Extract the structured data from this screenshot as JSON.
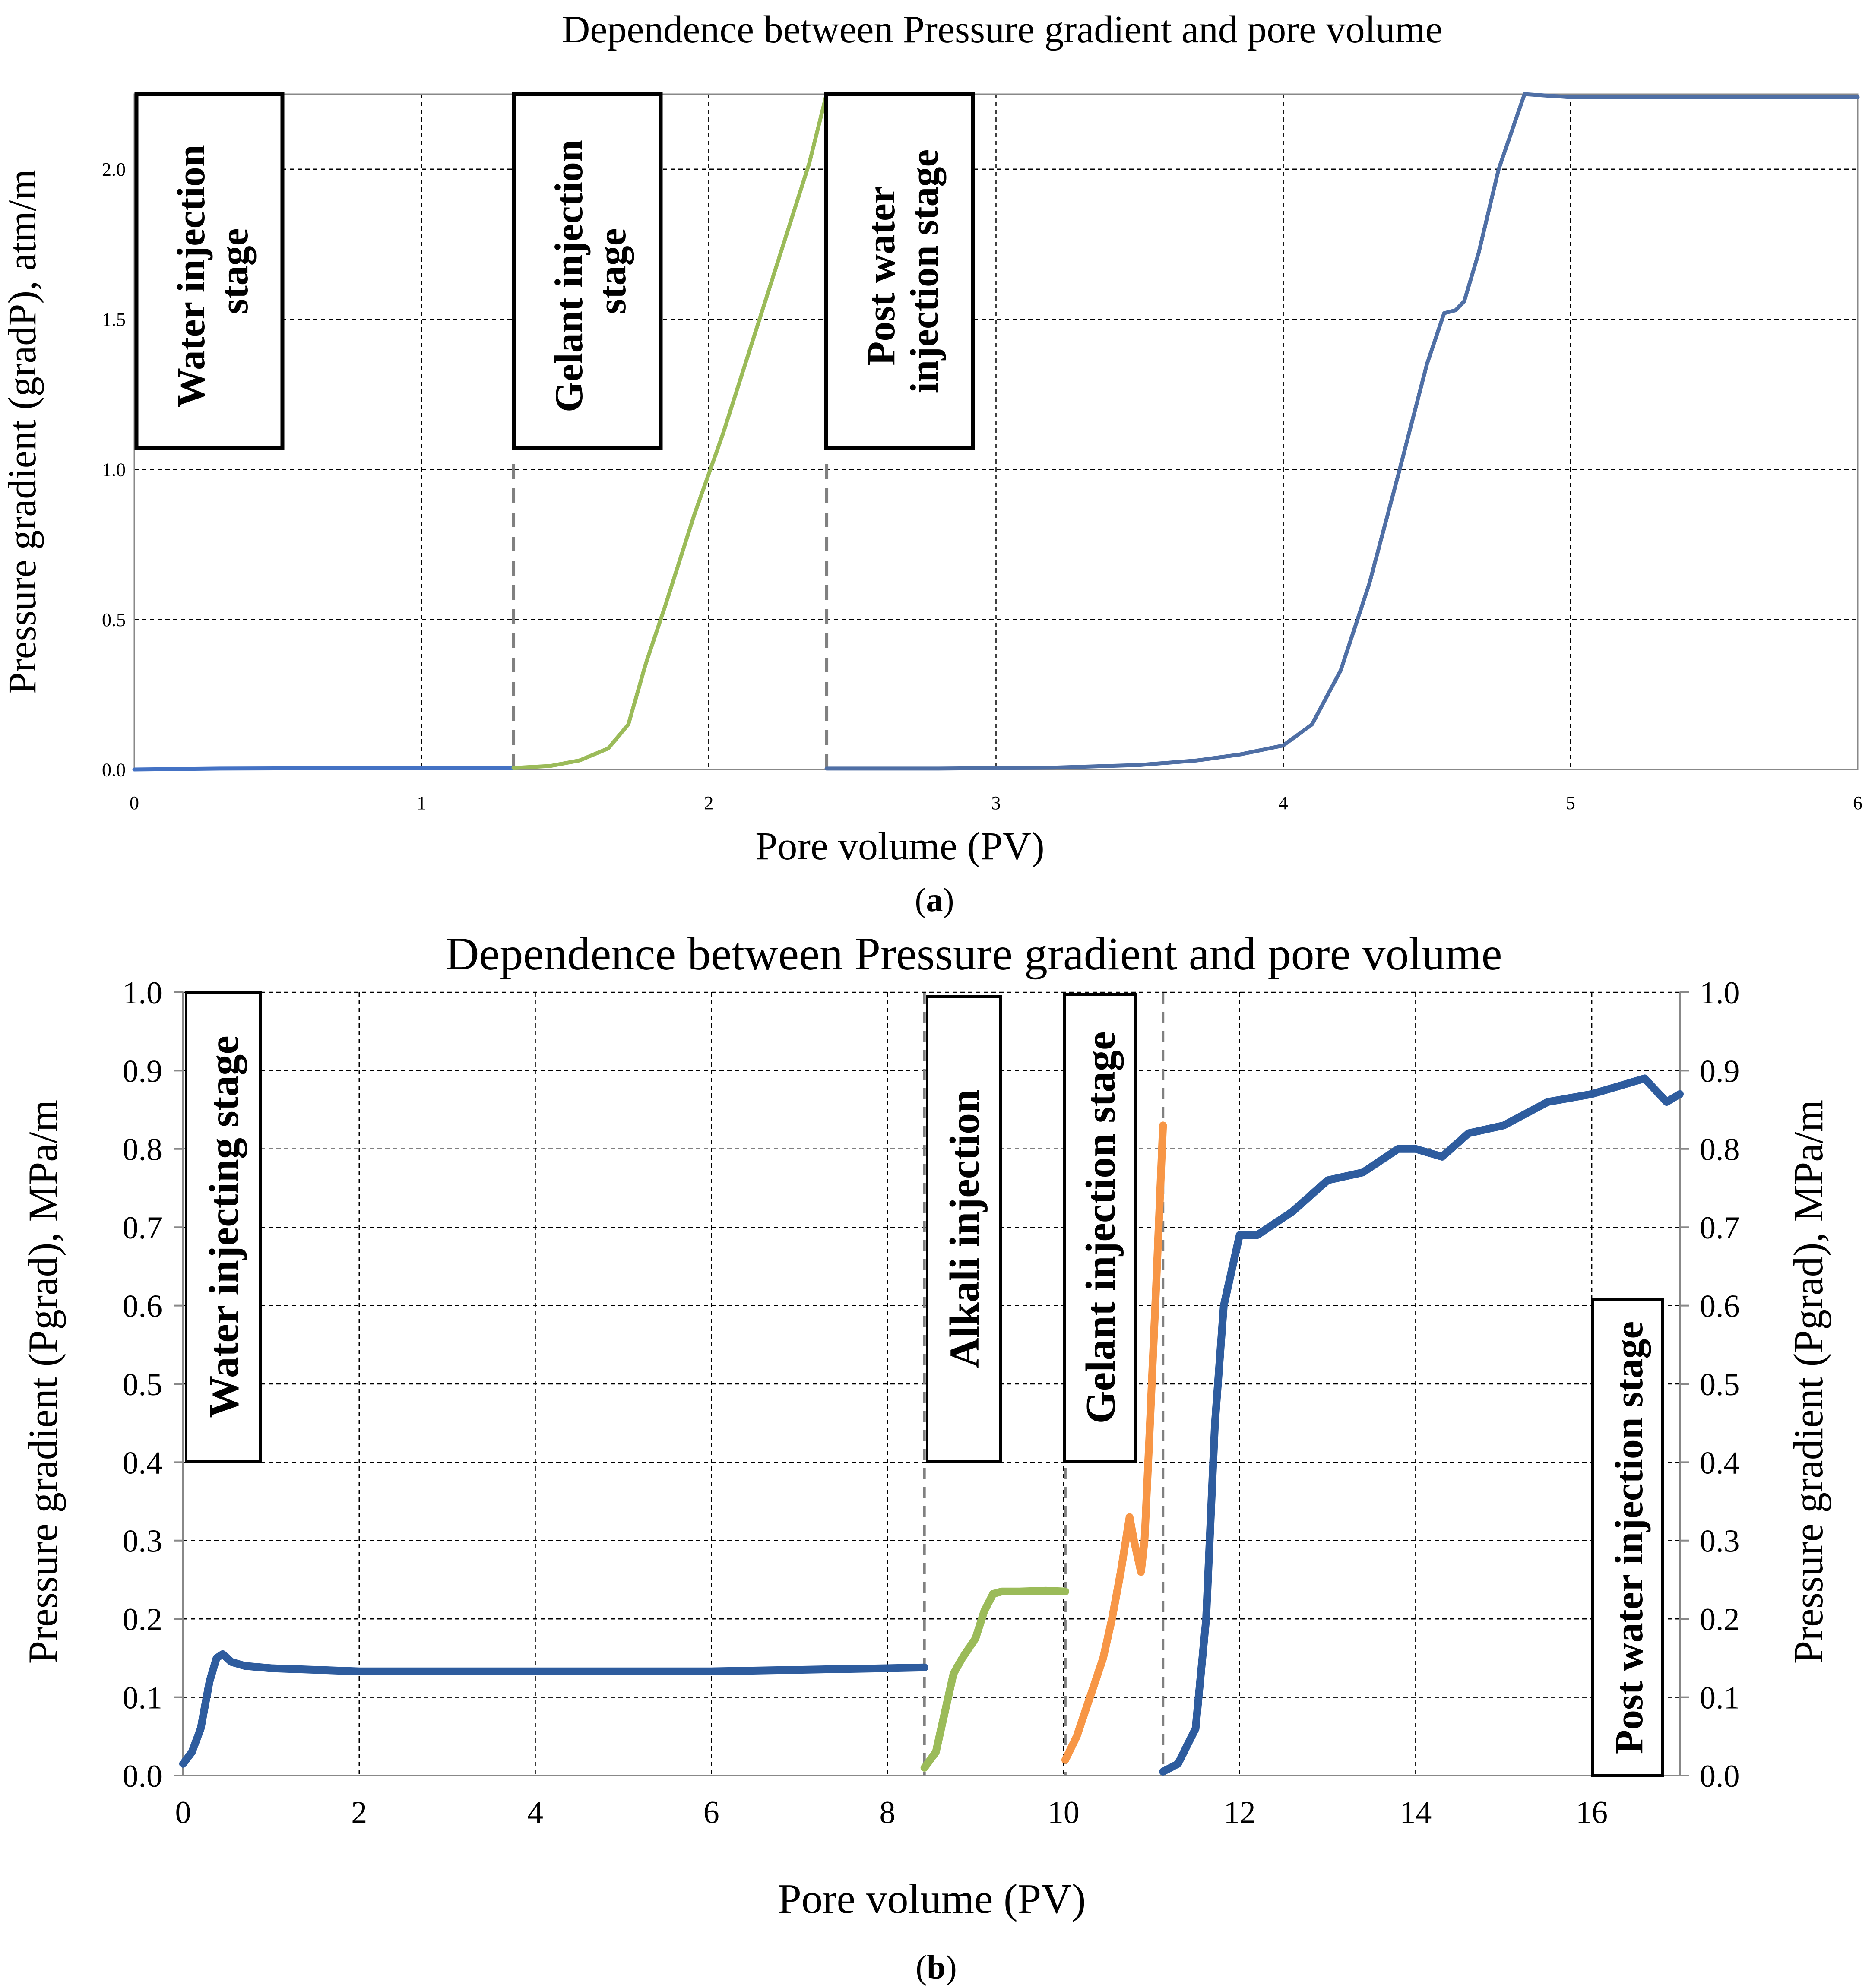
{
  "chart_data": [
    {
      "type": "line",
      "panel_label": "(a)",
      "title": "Dependence between Pressure gradient and pore volume",
      "xlabel": "Pore volume (PV)",
      "ylabel": "Pressure gradient (gradP), atm/m",
      "xlim": [
        0,
        6
      ],
      "ylim": [
        0,
        2.25
      ],
      "xticks": [
        "0",
        "1",
        "2",
        "3",
        "4",
        "5",
        "6"
      ],
      "yticks": [
        "0.0",
        "0.5",
        "1.0",
        "1.5",
        "2.0"
      ],
      "grid": true,
      "stage_dividers": [
        1.32,
        2.41
      ],
      "annotations": [
        {
          "lines": [
            "Water injection",
            "stage"
          ],
          "x_range": [
            0,
            0.52
          ]
        },
        {
          "lines": [
            "Gelant injection",
            "stage"
          ],
          "x_range": [
            1.32,
            1.84
          ]
        },
        {
          "lines": [
            "Post water",
            "injection stage"
          ],
          "x_range": [
            2.41,
            2.93
          ]
        }
      ],
      "series": [
        {
          "name": "Water injection stage",
          "color": "#4472c4",
          "x": [
            0,
            0.3,
            0.6,
            1.0,
            1.32
          ],
          "y": [
            0,
            0.003,
            0.004,
            0.005,
            0.005
          ]
        },
        {
          "name": "Gelant injection stage",
          "color": "#9bbb59",
          "x": [
            1.32,
            1.45,
            1.55,
            1.65,
            1.72,
            1.78,
            1.85,
            1.95,
            2.05,
            2.15,
            2.25,
            2.35,
            2.41
          ],
          "y": [
            0.005,
            0.012,
            0.03,
            0.07,
            0.15,
            0.35,
            0.55,
            0.85,
            1.12,
            1.42,
            1.72,
            2.02,
            2.25
          ]
        },
        {
          "name": "Post water injection stage",
          "color": "#4f6fa5",
          "x": [
            2.41,
            2.8,
            3.2,
            3.5,
            3.7,
            3.85,
            4.0,
            4.1,
            4.2,
            4.3,
            4.4,
            4.5,
            4.56,
            4.6,
            4.63,
            4.68,
            4.75,
            4.84,
            5.0,
            5.5,
            6.0
          ],
          "y": [
            0.003,
            0.003,
            0.006,
            0.015,
            0.03,
            0.05,
            0.08,
            0.15,
            0.33,
            0.62,
            0.98,
            1.35,
            1.52,
            1.53,
            1.56,
            1.72,
            2.0,
            2.25,
            2.24,
            2.24,
            2.24
          ]
        }
      ]
    },
    {
      "type": "line",
      "panel_label": "(b)",
      "title": "Dependence between Pressure gradient and pore volume",
      "xlabel": "Pore volume (PV)",
      "ylabel": "Pressure gradient (Pgrad), MPa/m",
      "ylabel_right": "Pressure gradient (Pgrad), MPa/m",
      "xlim": [
        0,
        17
      ],
      "ylim": [
        0,
        1.0
      ],
      "xticks": [
        "0",
        "2",
        "4",
        "6",
        "8",
        "10",
        "12",
        "14",
        "16"
      ],
      "yticks": [
        "0.0",
        "0.1",
        "0.2",
        "0.3",
        "0.4",
        "0.5",
        "0.6",
        "0.7",
        "0.8",
        "0.9",
        "1.0"
      ],
      "grid": true,
      "stage_dividers": [
        8.42,
        10.02,
        11.13
      ],
      "annotations": [
        {
          "text": "Water injecting stage",
          "x_range": [
            0.05,
            0.9
          ],
          "y_range": [
            0.4,
            1.0
          ]
        },
        {
          "text": "Alkali injection",
          "x_range": [
            8.4,
            9.27
          ],
          "y_range": [
            0.4,
            1.0
          ]
        },
        {
          "text": "Gelant injection stage",
          "x_range": [
            10.0,
            10.82
          ],
          "y_range": [
            0.4,
            1.0
          ]
        },
        {
          "text": "Post water injection stage",
          "x_range": [
            16.0,
            16.82
          ],
          "y_range": [
            0.0,
            0.6
          ]
        }
      ],
      "series": [
        {
          "name": "Water injecting stage",
          "color": "#2e5c9e",
          "x": [
            0,
            0.1,
            0.2,
            0.3,
            0.38,
            0.45,
            0.55,
            0.7,
            1.0,
            1.5,
            2.0,
            3.0,
            4.0,
            5.0,
            6.0,
            7.0,
            8.0,
            8.42
          ],
          "y": [
            0.015,
            0.03,
            0.06,
            0.12,
            0.15,
            0.155,
            0.145,
            0.14,
            0.137,
            0.135,
            0.133,
            0.133,
            0.133,
            0.133,
            0.133,
            0.135,
            0.137,
            0.138
          ]
        },
        {
          "name": "Alkali injection",
          "color": "#9bbb59",
          "x": [
            8.42,
            8.55,
            8.65,
            8.75,
            8.85,
            9.0,
            9.1,
            9.2,
            9.3,
            9.5,
            9.8,
            10.02
          ],
          "y": [
            0.01,
            0.03,
            0.08,
            0.13,
            0.15,
            0.175,
            0.21,
            0.232,
            0.235,
            0.235,
            0.236,
            0.235
          ]
        },
        {
          "name": "Gelant injection stage",
          "color": "#f79646",
          "x": [
            10.02,
            10.15,
            10.3,
            10.45,
            10.55,
            10.65,
            10.75,
            10.8,
            10.88,
            10.92,
            10.97,
            11.05,
            11.13
          ],
          "y": [
            0.02,
            0.05,
            0.1,
            0.15,
            0.2,
            0.26,
            0.33,
            0.3,
            0.26,
            0.3,
            0.42,
            0.62,
            0.83
          ]
        },
        {
          "name": "Post water injection stage",
          "color": "#2e5c9e",
          "x": [
            11.13,
            11.3,
            11.5,
            11.62,
            11.72,
            11.82,
            11.92,
            12.0,
            12.2,
            12.6,
            13.0,
            13.4,
            13.8,
            14.0,
            14.3,
            14.6,
            15.0,
            15.5,
            16.0,
            16.3,
            16.6,
            16.85,
            17.0
          ],
          "y": [
            0.005,
            0.015,
            0.06,
            0.2,
            0.45,
            0.6,
            0.65,
            0.69,
            0.69,
            0.72,
            0.76,
            0.77,
            0.8,
            0.8,
            0.79,
            0.82,
            0.83,
            0.86,
            0.87,
            0.88,
            0.89,
            0.86,
            0.87
          ]
        }
      ]
    }
  ]
}
